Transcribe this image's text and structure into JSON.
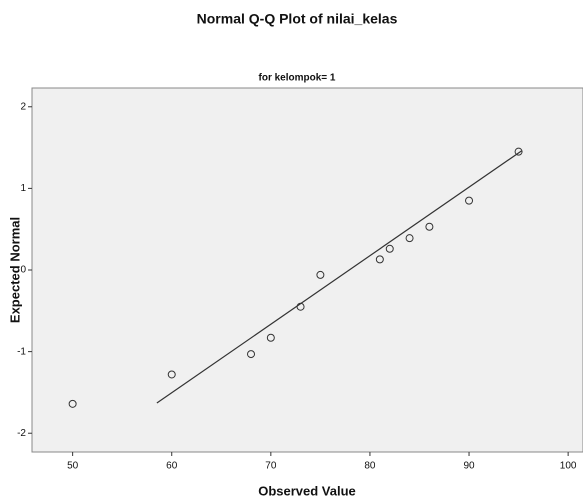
{
  "chart_data": {
    "type": "scatter",
    "title": "Normal Q-Q Plot of nilai_kelas",
    "subtitle": "for kelompok= 1",
    "x_label": "Observed Value",
    "y_label": "Expected Normal",
    "x": [
      50,
      60,
      68,
      70,
      73,
      75,
      81,
      82,
      84,
      86,
      90,
      95
    ],
    "values": [
      -1.64,
      -1.28,
      -1.03,
      -0.83,
      -0.45,
      -0.06,
      0.13,
      0.26,
      0.39,
      0.53,
      0.85,
      1.45
    ],
    "color": "#333333",
    "reference_line": {
      "x": [
        58.5,
        95.3
      ],
      "values": [
        -1.63,
        1.46
      ],
      "color": "#333333"
    },
    "xlim": [
      45.9,
      101.5
    ],
    "ylim": [
      -2.23,
      2.23
    ],
    "xticks": [
      50,
      60,
      70,
      80,
      90,
      100
    ],
    "yticks": [
      -2,
      -1,
      0,
      1,
      2
    ]
  }
}
